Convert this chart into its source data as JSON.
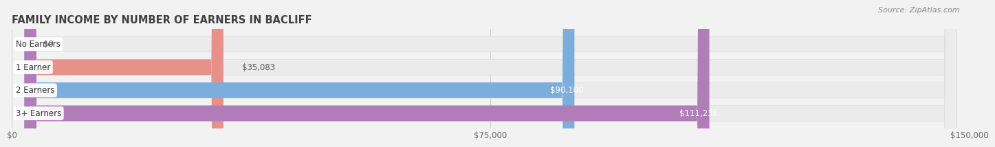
{
  "title": "FAMILY INCOME BY NUMBER OF EARNERS IN BACLIFF",
  "source": "Source: ZipAtlas.com",
  "categories": [
    "No Earners",
    "1 Earner",
    "2 Earners",
    "3+ Earners"
  ],
  "values": [
    0,
    35083,
    90100,
    111236
  ],
  "bar_colors": [
    "#f5c98c",
    "#e8908a",
    "#7baedd",
    "#b07db8"
  ],
  "bar_labels": [
    "$0",
    "$35,083",
    "$90,100",
    "$111,236"
  ],
  "label_colors": [
    "#666666",
    "#555555",
    "#ffffff",
    "#ffffff"
  ],
  "xlim": [
    0,
    150000
  ],
  "xticks": [
    0,
    75000,
    150000
  ],
  "xtick_labels": [
    "$0",
    "$75,000",
    "$150,000"
  ],
  "background_color": "#f2f2f2",
  "bar_bg_color": "#ebebeb",
  "bar_bg_outline": "#dddddd",
  "title_fontsize": 10.5,
  "source_fontsize": 8,
  "tick_fontsize": 8.5,
  "label_fontsize": 8.5,
  "category_fontsize": 8.5
}
